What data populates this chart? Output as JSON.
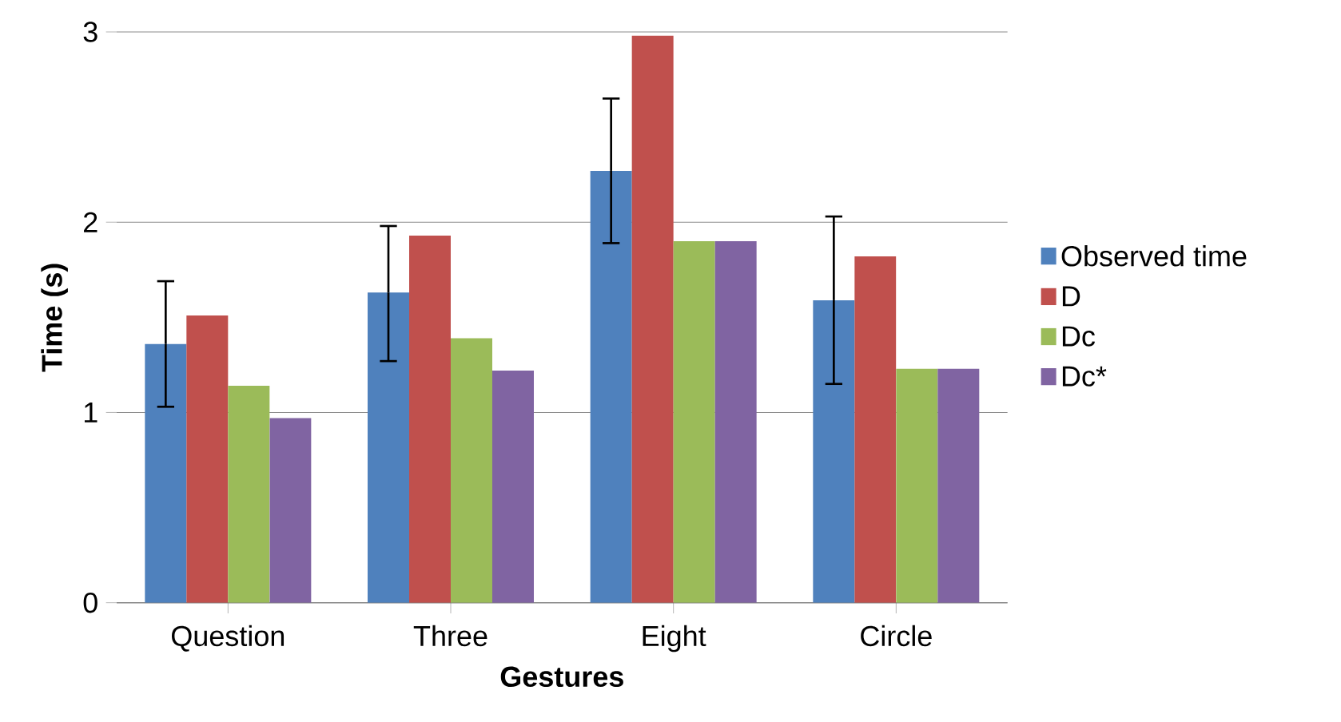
{
  "chart_data": {
    "type": "bar",
    "xlabel": "Gestures",
    "ylabel": "Time (s)",
    "categories": [
      "Question",
      "Three",
      "Eight",
      "Circle"
    ],
    "series": [
      {
        "name": "Observed time",
        "color": "#4f81bd",
        "values": [
          1.36,
          1.63,
          2.27,
          1.59
        ],
        "errors": [
          [
            1.03,
            1.69
          ],
          [
            1.27,
            1.98
          ],
          [
            1.89,
            2.65
          ],
          [
            1.15,
            2.03
          ]
        ]
      },
      {
        "name": "D",
        "color": "#c0504d",
        "values": [
          1.51,
          1.93,
          2.98,
          1.82
        ]
      },
      {
        "name": "Dc",
        "color": "#9bbb59",
        "values": [
          1.14,
          1.39,
          1.9,
          1.23
        ]
      },
      {
        "name": "Dc*",
        "color": "#8064a2",
        "values": [
          0.97,
          1.22,
          1.9,
          1.23
        ]
      }
    ],
    "ylim": [
      0,
      3
    ],
    "yticks": [
      0,
      1,
      2,
      3
    ],
    "grid": "y",
    "legend": "right"
  }
}
